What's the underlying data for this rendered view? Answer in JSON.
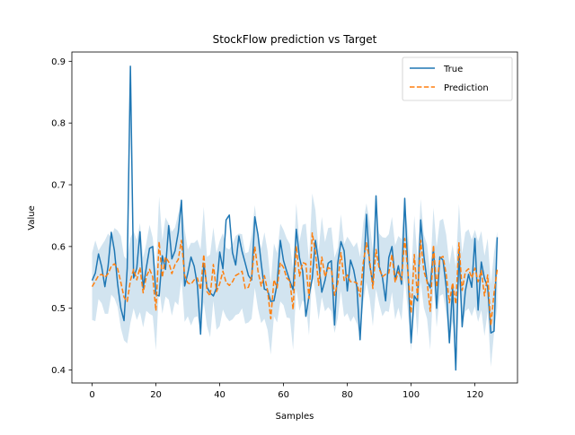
{
  "chart_data": {
    "type": "line",
    "title": "StockFlow prediction vs Target",
    "xlabel": "Samples",
    "ylabel": "Value",
    "xlim": [
      -6.35,
      133.35
    ],
    "ylim": [
      0.379,
      0.915
    ],
    "xticks": [
      0,
      20,
      40,
      60,
      80,
      100,
      120
    ],
    "yticks": [
      0.4,
      0.5,
      0.6,
      0.7,
      0.8,
      0.9
    ],
    "xtick_labels": [
      "0",
      "20",
      "40",
      "60",
      "80",
      "100",
      "120"
    ],
    "ytick_labels": [
      "0.4",
      "0.5",
      "0.6",
      "0.7",
      "0.8",
      "0.9"
    ],
    "grid": false,
    "legend_position": "upper-right",
    "colors": {
      "true": "#1f77b4",
      "prediction": "#ff7f0e",
      "band": "#1f77b4"
    },
    "band_opacity": 0.2,
    "series": [
      {
        "name": "True",
        "style": "solid",
        "values": [
          0.545,
          0.557,
          0.588,
          0.567,
          0.535,
          0.568,
          0.623,
          0.593,
          0.539,
          0.5,
          0.48,
          0.565,
          0.892,
          0.549,
          0.565,
          0.624,
          0.533,
          0.566,
          0.597,
          0.6,
          0.522,
          0.52,
          0.585,
          0.563,
          0.634,
          0.58,
          0.593,
          0.623,
          0.675,
          0.536,
          0.557,
          0.583,
          0.568,
          0.537,
          0.458,
          0.573,
          0.534,
          0.525,
          0.52,
          0.533,
          0.591,
          0.564,
          0.643,
          0.651,
          0.59,
          0.57,
          0.617,
          0.592,
          0.573,
          0.553,
          0.546,
          0.648,
          0.619,
          0.573,
          0.531,
          0.529,
          0.511,
          0.512,
          0.54,
          0.61,
          0.577,
          0.56,
          0.544,
          0.53,
          0.628,
          0.582,
          0.56,
          0.487,
          0.52,
          0.548,
          0.61,
          0.575,
          0.526,
          0.545,
          0.573,
          0.577,
          0.473,
          0.573,
          0.608,
          0.593,
          0.528,
          0.578,
          0.562,
          0.534,
          0.449,
          0.544,
          0.652,
          0.571,
          0.539,
          0.682,
          0.568,
          0.55,
          0.512,
          0.582,
          0.6,
          0.546,
          0.569,
          0.539,
          0.678,
          0.559,
          0.444,
          0.52,
          0.512,
          0.643,
          0.585,
          0.544,
          0.533,
          0.598,
          0.5,
          0.583,
          0.578,
          0.534,
          0.444,
          0.534,
          0.4,
          0.596,
          0.47,
          0.528,
          0.555,
          0.534,
          0.613,
          0.497,
          0.575,
          0.548,
          0.534,
          0.46,
          0.463,
          0.615
        ]
      },
      {
        "name": "Prediction",
        "style": "dashed",
        "values": [
          0.535,
          0.544,
          0.553,
          0.555,
          0.55,
          0.556,
          0.568,
          0.572,
          0.564,
          0.542,
          0.518,
          0.511,
          0.545,
          0.563,
          0.546,
          0.566,
          0.525,
          0.551,
          0.563,
          0.551,
          0.496,
          0.608,
          0.55,
          0.583,
          0.575,
          0.556,
          0.571,
          0.579,
          0.61,
          0.553,
          0.541,
          0.539,
          0.546,
          0.549,
          0.53,
          0.587,
          0.527,
          0.52,
          0.571,
          0.527,
          0.54,
          0.56,
          0.542,
          0.537,
          0.543,
          0.553,
          0.556,
          0.56,
          0.532,
          0.534,
          0.551,
          0.6,
          0.56,
          0.536,
          0.553,
          0.529,
          0.483,
          0.546,
          0.533,
          0.574,
          0.566,
          0.549,
          0.544,
          0.498,
          0.601,
          0.552,
          0.574,
          0.572,
          0.516,
          0.622,
          0.591,
          0.537,
          0.583,
          0.551,
          0.566,
          0.563,
          0.521,
          0.541,
          0.59,
          0.545,
          0.554,
          0.543,
          0.543,
          0.541,
          0.519,
          0.574,
          0.606,
          0.578,
          0.532,
          0.595,
          0.564,
          0.551,
          0.555,
          0.557,
          0.587,
          0.542,
          0.559,
          0.546,
          0.613,
          0.559,
          0.492,
          0.587,
          0.517,
          0.61,
          0.56,
          0.543,
          0.495,
          0.602,
          0.534,
          0.581,
          0.584,
          0.555,
          0.509,
          0.541,
          0.507,
          0.606,
          0.529,
          0.559,
          0.564,
          0.549,
          0.565,
          0.543,
          0.561,
          0.52,
          0.554,
          0.472,
          0.525,
          0.563
        ]
      }
    ],
    "band": {
      "lower": [
        0.481,
        0.479,
        0.515,
        0.508,
        0.491,
        0.491,
        0.522,
        0.516,
        0.502,
        0.468,
        0.448,
        0.443,
        0.476,
        0.5,
        0.481,
        0.494,
        0.469,
        0.496,
        0.491,
        0.488,
        0.432,
        0.535,
        0.491,
        0.519,
        0.514,
        0.488,
        0.511,
        0.505,
        0.548,
        0.478,
        0.487,
        0.472,
        0.485,
        0.487,
        0.465,
        0.51,
        0.471,
        0.453,
        0.512,
        0.465,
        0.471,
        0.498,
        0.486,
        0.479,
        0.482,
        0.489,
        0.491,
        0.5,
        0.475,
        0.477,
        0.483,
        0.533,
        0.499,
        0.476,
        0.483,
        0.465,
        0.425,
        0.487,
        0.477,
        0.511,
        0.505,
        0.485,
        0.484,
        0.433,
        0.532,
        0.496,
        0.513,
        0.507,
        0.456,
        0.558,
        0.523,
        0.481,
        0.518,
        0.495,
        0.502,
        0.495,
        0.46,
        0.484,
        0.528,
        0.486,
        0.492,
        0.478,
        0.487,
        0.475,
        0.455,
        0.509,
        0.542,
        0.516,
        0.471,
        0.531,
        0.507,
        0.487,
        0.496,
        0.494,
        0.526,
        0.482,
        0.501,
        0.48,
        0.55,
        0.494,
        0.43,
        0.524,
        0.454,
        0.543,
        0.501,
        0.483,
        0.433,
        0.541,
        0.469,
        0.52,
        0.523,
        0.491,
        0.447,
        0.479,
        0.447,
        0.543,
        0.469,
        0.495,
        0.5,
        0.487,
        0.503,
        0.478,
        0.497,
        0.455,
        0.495,
        0.405,
        0.46,
        0.502
      ],
      "upper": [
        0.59,
        0.61,
        0.593,
        0.602,
        0.61,
        0.621,
        0.614,
        0.63,
        0.626,
        0.617,
        0.584,
        0.579,
        0.614,
        0.625,
        0.61,
        0.638,
        0.582,
        0.606,
        0.635,
        0.614,
        0.561,
        0.681,
        0.61,
        0.647,
        0.637,
        0.624,
        0.631,
        0.653,
        0.672,
        0.628,
        0.595,
        0.606,
        0.606,
        0.611,
        0.595,
        0.664,
        0.583,
        0.587,
        0.631,
        0.589,
        0.609,
        0.622,
        0.598,
        0.595,
        0.604,
        0.617,
        0.621,
        0.62,
        0.589,
        0.591,
        0.619,
        0.667,
        0.621,
        0.596,
        0.623,
        0.593,
        0.541,
        0.605,
        0.589,
        0.637,
        0.627,
        0.613,
        0.604,
        0.563,
        0.67,
        0.608,
        0.635,
        0.637,
        0.576,
        0.686,
        0.659,
        0.593,
        0.648,
        0.607,
        0.63,
        0.631,
        0.582,
        0.598,
        0.652,
        0.604,
        0.616,
        0.608,
        0.599,
        0.607,
        0.583,
        0.639,
        0.67,
        0.64,
        0.593,
        0.659,
        0.621,
        0.615,
        0.614,
        0.62,
        0.648,
        0.602,
        0.617,
        0.612,
        0.676,
        0.624,
        0.554,
        0.65,
        0.58,
        0.677,
        0.619,
        0.603,
        0.557,
        0.663,
        0.599,
        0.642,
        0.645,
        0.619,
        0.571,
        0.603,
        0.567,
        0.669,
        0.589,
        0.623,
        0.628,
        0.611,
        0.627,
        0.608,
        0.625,
        0.585,
        0.613,
        0.539,
        0.59,
        0.624
      ]
    }
  }
}
